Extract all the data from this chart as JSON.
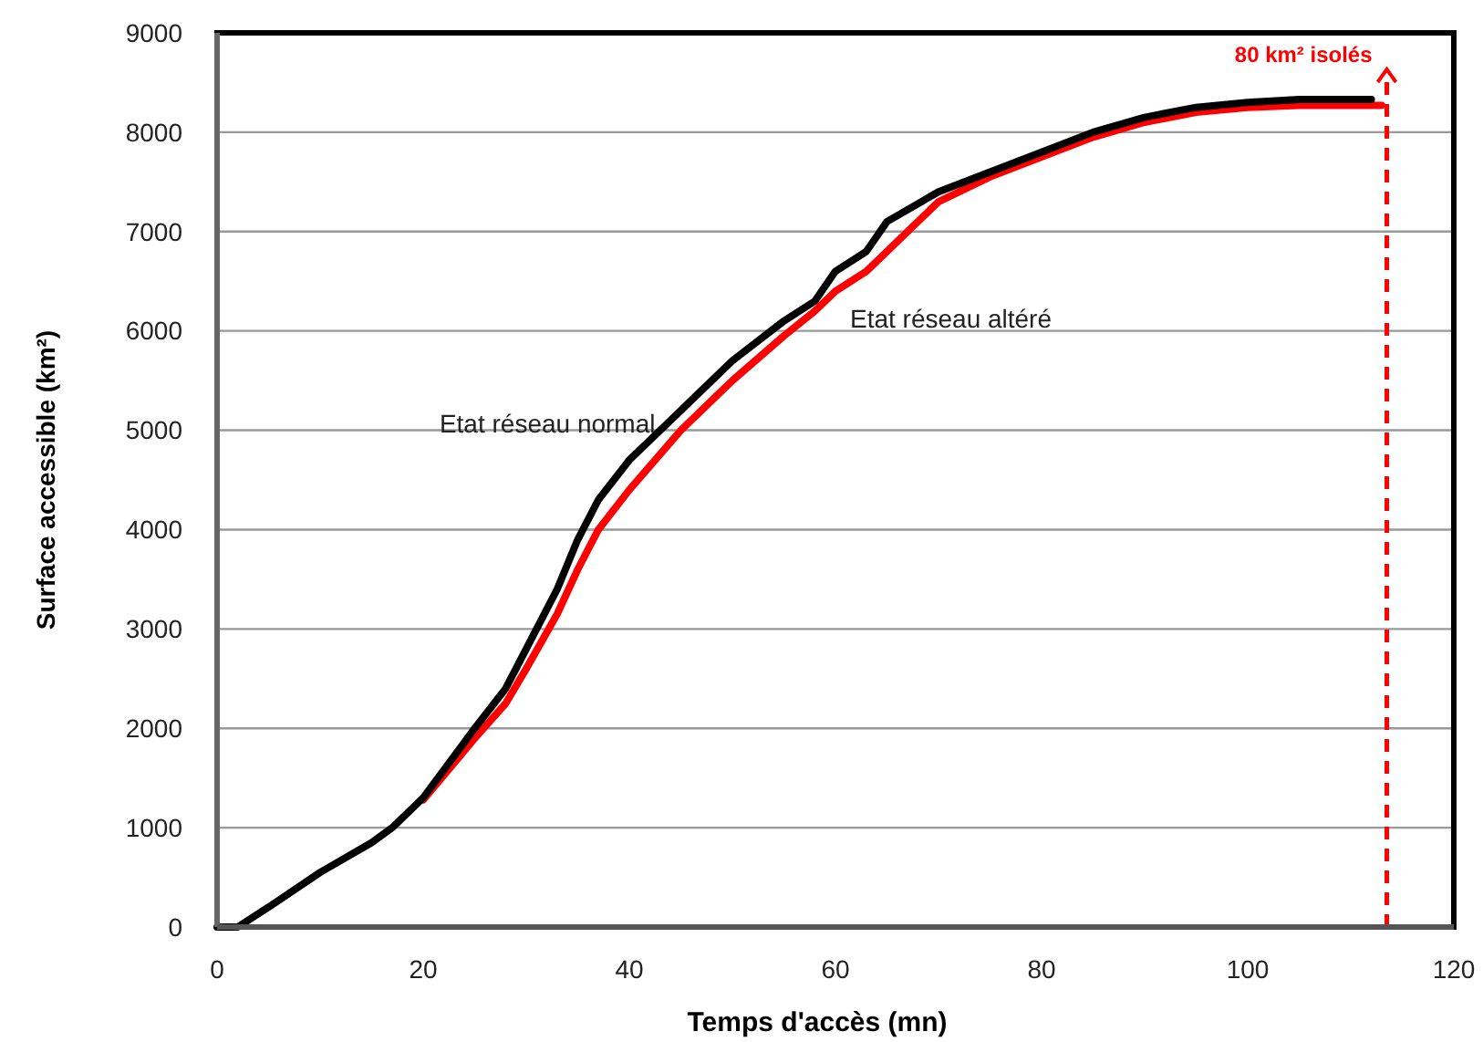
{
  "chart_data": {
    "type": "line",
    "xlabel": "Temps d'accès (mn)",
    "ylabel": "Surface accessible (km²)",
    "xlim": [
      0,
      120
    ],
    "xticks": [
      0,
      20,
      40,
      60,
      80,
      100,
      120
    ],
    "ylim": [
      0,
      9000
    ],
    "yticks": [
      0,
      1000,
      2000,
      3000,
      4000,
      5000,
      6000,
      7000,
      8000,
      9000
    ],
    "grid": "y",
    "marker": "none",
    "line_style": "solid",
    "legend": false,
    "series": [
      {
        "name": "Etat réseau normal",
        "color": "#000000",
        "x": [
          0,
          2,
          5,
          10,
          15,
          17,
          20,
          25,
          28,
          30,
          33,
          35,
          37,
          40,
          45,
          50,
          55,
          58,
          60,
          63,
          65,
          70,
          75,
          80,
          85,
          90,
          95,
          100,
          105,
          112
        ],
        "values": [
          0,
          0,
          200,
          550,
          850,
          1000,
          1300,
          2000,
          2400,
          2800,
          3400,
          3900,
          4300,
          4700,
          5200,
          5700,
          6100,
          6300,
          6600,
          6800,
          7100,
          7400,
          7600,
          7800,
          8000,
          8150,
          8250,
          8300,
          8330,
          8330
        ]
      },
      {
        "name": "Etat réseau altéré",
        "color": "#ff0000",
        "x": [
          20,
          25,
          28,
          30,
          33,
          35,
          37,
          40,
          45,
          50,
          55,
          58,
          60,
          63,
          65,
          70,
          75,
          80,
          85,
          90,
          95,
          100,
          105,
          113
        ],
        "values": [
          1280,
          1900,
          2250,
          2600,
          3150,
          3600,
          4000,
          4400,
          5000,
          5500,
          5950,
          6200,
          6400,
          6600,
          6800,
          7300,
          7550,
          7750,
          7950,
          8100,
          8200,
          8250,
          8270,
          8270
        ]
      }
    ],
    "ref_lines": [
      {
        "axis": "x",
        "value": 113.5,
        "label": "80 km² isolés",
        "color": "#ff0000",
        "line_style": "dashed"
      }
    ]
  }
}
